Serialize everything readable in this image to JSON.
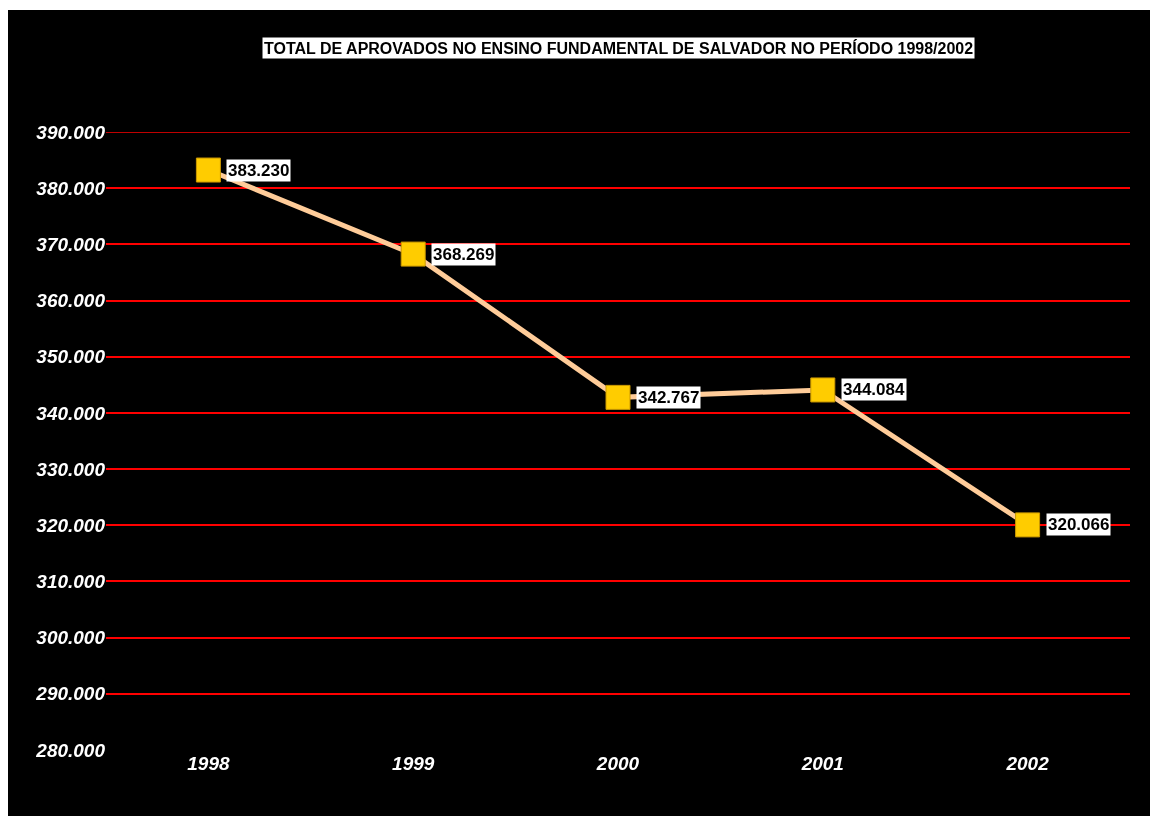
{
  "chart_data": {
    "type": "line",
    "title": "TOTAL DE APROVADOS NO ENSINO FUNDAMENTAL DE SALVADOR NO PERÍODO 1998/2002",
    "categories": [
      "1998",
      "1999",
      "2000",
      "2001",
      "2002"
    ],
    "series": [
      {
        "color": "#ffcc99",
        "values": [
          383230,
          368269,
          342767,
          344084,
          320066
        ],
        "value_labels": [
          "383.230",
          "368.269",
          "342.767",
          "344.084",
          "320.066"
        ]
      }
    ],
    "marker": "square",
    "line_style": "solid",
    "grid": "y",
    "ylim": [
      280000,
      390000
    ],
    "yticks": [
      {
        "value": 280000,
        "label": "280.000"
      },
      {
        "value": 290000,
        "label": "290.000"
      },
      {
        "value": 300000,
        "label": "300.000"
      },
      {
        "value": 310000,
        "label": "310.000"
      },
      {
        "value": 320000,
        "label": "320.000"
      },
      {
        "value": 330000,
        "label": "330.000"
      },
      {
        "value": 340000,
        "label": "340.000"
      },
      {
        "value": 350000,
        "label": "350.000"
      },
      {
        "value": 360000,
        "label": "360.000"
      },
      {
        "value": 370000,
        "label": "370.000"
      },
      {
        "value": 380000,
        "label": "380.000"
      },
      {
        "value": 390000,
        "label": "390.000"
      }
    ]
  }
}
